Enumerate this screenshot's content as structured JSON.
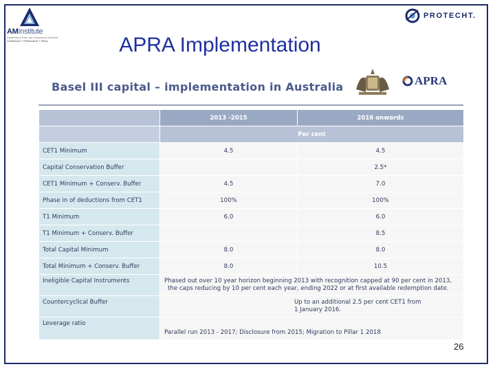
{
  "header": {
    "left_logo": {
      "main": "AM",
      "sub": "Institute",
      "tagline_1": "Governance Risk and Compliance Institute",
      "tagline_2": "Conference • Professional • Ethics"
    },
    "right_logo": {
      "brand": "PROTECHT."
    }
  },
  "slide": {
    "title": "APRA Implementation",
    "subtitle": "Basel III capital – implementation in Australia",
    "apra_logo_text": "APRA",
    "page_number": "26"
  },
  "table": {
    "columns": [
      "",
      "2013 -2015",
      "2016 onwards"
    ],
    "unit_row": "Per cent",
    "rows": [
      {
        "label": "CET1 Minimum",
        "c1": "4.5",
        "c2": "4.5"
      },
      {
        "label": "Capital Conservation Buffer",
        "c1": "",
        "c2": "2.5*"
      },
      {
        "label": "CET1 Minimum + Conserv. Buffer",
        "c1": "4.5",
        "c2": "7.0"
      },
      {
        "label": "Phase in of deductions from CET1",
        "c1": "100%",
        "c2": "100%"
      },
      {
        "label": "T1 Minimum",
        "c1": "6.0",
        "c2": "6.0"
      },
      {
        "label": "T1 Minimum + Conserv. Buffer",
        "c1": "",
        "c2": "8.5"
      },
      {
        "label": "Total Capital Minimum",
        "c1": "8.0",
        "c2": "8.0"
      },
      {
        "label": "Total Minimum + Conserv. Buffer",
        "c1": "8.0",
        "c2": "10.5"
      }
    ],
    "ineligible": {
      "label": "Ineligible Capital Instruments",
      "line1": "Phased out over 10 year horizon beginning 2013 with recognition capped at 90 per cent in 2013,",
      "line2": "the caps reducing by 10 per cent each year, ending 2022 or at first available redemption date."
    },
    "countercyclical": {
      "label": "Countercyclical Buffer",
      "line1": "Up to an additional 2.5 per cent CET1 from",
      "line2": "1 January 2016."
    },
    "leverage": {
      "label": "Leverage ratio",
      "text": "Parallel run 2013 - 2017; Disclosure from 2015; Migration to Pillar 1 2018"
    }
  },
  "colors": {
    "frame": "#1b2a6b",
    "title": "#1f2fa0",
    "header_row": "#9aa9c3",
    "label_cell": "#d5e8ee"
  }
}
